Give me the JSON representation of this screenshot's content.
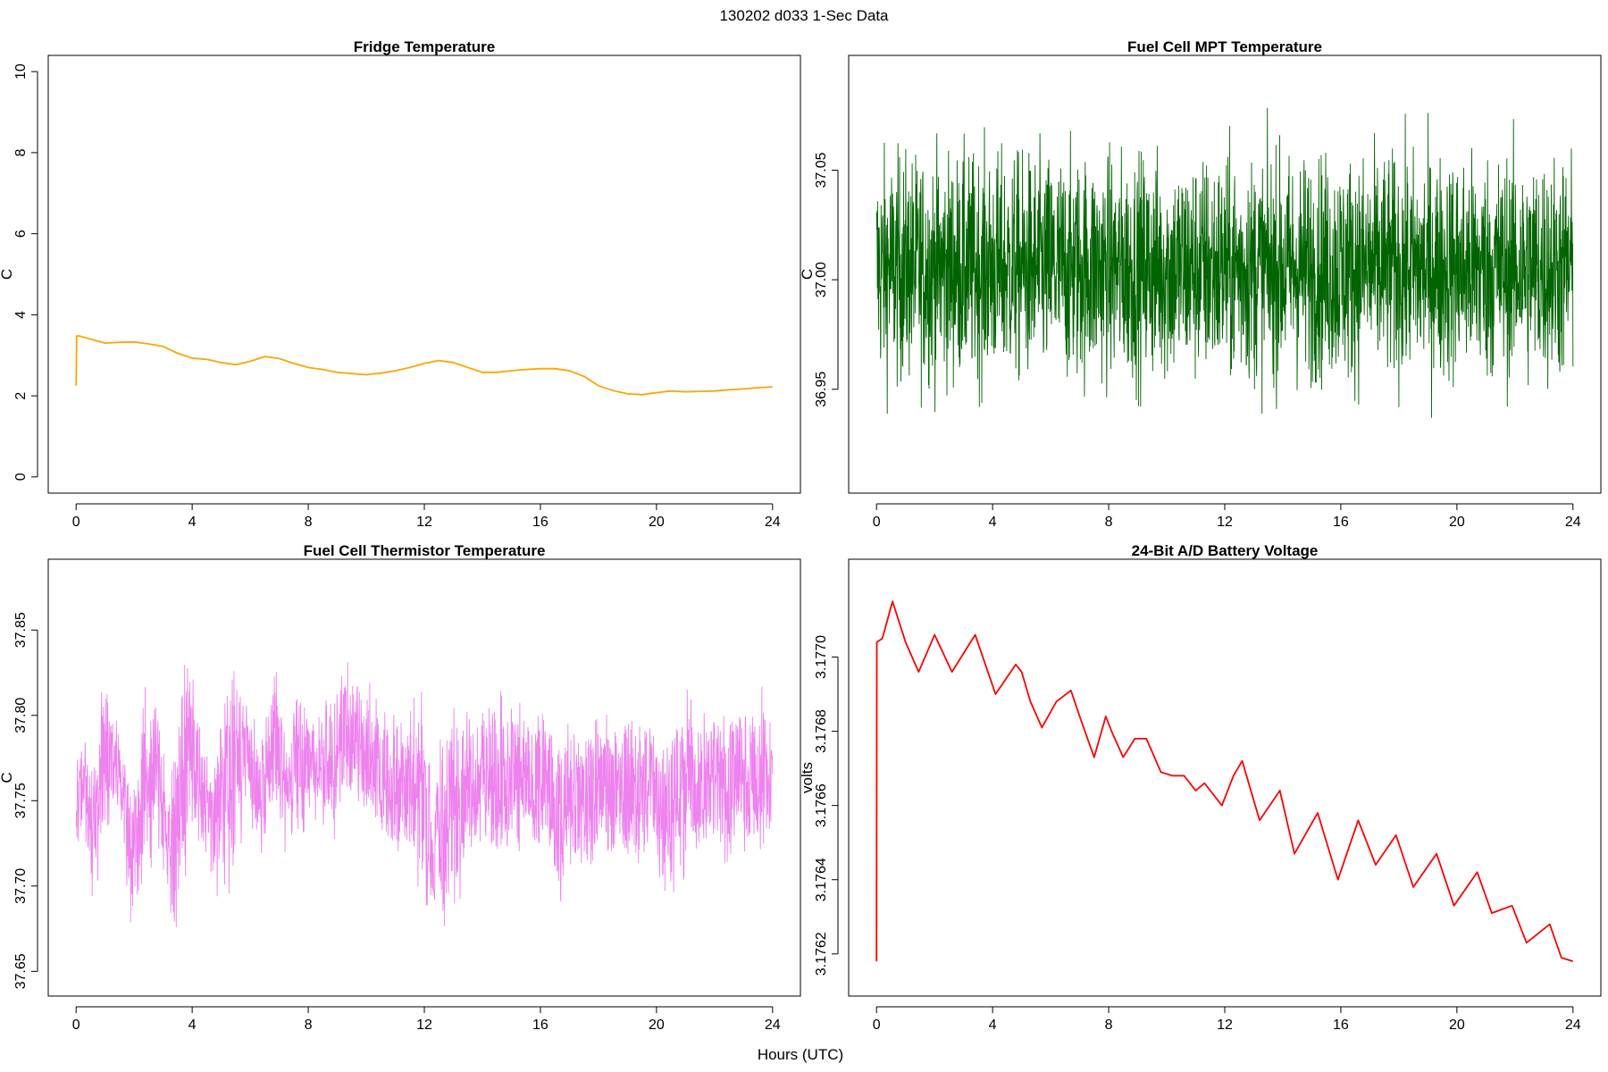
{
  "figure": {
    "title": "130202   d033   1-Sec Data",
    "xlabel": "Hours (UTC)"
  },
  "chart_data": [
    {
      "type": "line",
      "title": "Fridge Temperature",
      "xlabel": "",
      "ylabel": "C",
      "xlim": [
        0,
        24
      ],
      "ylim": [
        0,
        10
      ],
      "xticks": [
        0,
        4,
        8,
        12,
        16,
        20,
        24
      ],
      "yticks": [
        0,
        2,
        4,
        6,
        8,
        10
      ],
      "ytick_labels": [
        "0",
        "2",
        "4",
        "6",
        "8",
        "10"
      ],
      "color": "#FFA500",
      "grid": false,
      "series": [
        {
          "x": [
            0,
            0.02,
            0.1,
            0.5,
            1,
            1.5,
            2,
            2.5,
            3,
            3.5,
            4,
            4.5,
            5,
            5.5,
            6,
            6.5,
            7,
            7.5,
            8,
            8.5,
            9,
            9.5,
            10,
            10.5,
            11,
            11.5,
            12,
            12.5,
            13,
            13.5,
            14,
            14.5,
            15,
            15.5,
            16,
            16.5,
            17,
            17.5,
            18,
            18.5,
            19,
            19.5,
            20,
            20.5,
            21,
            21.5,
            22,
            22.5,
            23,
            23.5,
            24
          ],
          "y": [
            2.25,
            3.48,
            3.48,
            3.4,
            3.3,
            3.32,
            3.33,
            3.28,
            3.22,
            3.05,
            2.93,
            2.9,
            2.82,
            2.77,
            2.85,
            2.97,
            2.92,
            2.8,
            2.7,
            2.65,
            2.58,
            2.55,
            2.52,
            2.56,
            2.62,
            2.7,
            2.8,
            2.87,
            2.82,
            2.7,
            2.58,
            2.58,
            2.62,
            2.65,
            2.67,
            2.67,
            2.62,
            2.48,
            2.25,
            2.13,
            2.05,
            2.03,
            2.08,
            2.12,
            2.1,
            2.11,
            2.12,
            2.15,
            2.17,
            2.2,
            2.22
          ]
        }
      ]
    },
    {
      "type": "line",
      "title": "Fuel Cell MPT Temperature",
      "xlabel": "",
      "ylabel": "C",
      "xlim": [
        0,
        24
      ],
      "ylim": [
        36.91,
        37.095
      ],
      "xticks": [
        0,
        4,
        8,
        12,
        16,
        20,
        24
      ],
      "yticks": [
        36.95,
        37.0,
        37.05
      ],
      "ytick_labels": [
        "36.95",
        "37.00",
        "37.05"
      ],
      "color": "#006400",
      "grid": false,
      "series": [
        {
          "name": "",
          "x_range": [
            0,
            24
          ],
          "mean": 37.005,
          "central_band": [
            36.97,
            37.04
          ],
          "min": 36.915,
          "max": 37.09
        }
      ]
    },
    {
      "type": "line",
      "title": "Fuel Cell Thermistor Temperature",
      "xlabel": "",
      "ylabel": "C",
      "xlim": [
        0,
        24
      ],
      "ylim": [
        37.645,
        37.882
      ],
      "xticks": [
        0,
        4,
        8,
        12,
        16,
        20,
        24
      ],
      "yticks": [
        37.65,
        37.7,
        37.75,
        37.8,
        37.85
      ],
      "ytick_labels": [
        "37.65",
        "37.70",
        "37.75",
        "37.80",
        "37.85"
      ],
      "color": "#EE82EE",
      "grid": false,
      "series": [
        {
          "name": "",
          "x": [
            0,
            0.3,
            0.6,
            1.0,
            1.5,
            1.9,
            2.3,
            2.8,
            3.2,
            3.5,
            3.9,
            4.3,
            4.7,
            5.1,
            5.5,
            5.9,
            6.3,
            6.8,
            7.2,
            7.6,
            8.0,
            8.4,
            8.8,
            9.3,
            9.8,
            10.4,
            11.0,
            11.5,
            11.9,
            12.3,
            12.6,
            13.0,
            13.4,
            13.8,
            14.2,
            14.6,
            15.0,
            15.4,
            15.8,
            16.2,
            16.6,
            17.0,
            17.4,
            17.8,
            18.3,
            18.7,
            19.1,
            19.5,
            19.9,
            20.3,
            20.7,
            21.1,
            21.6,
            22.0,
            22.4,
            22.9,
            23.3,
            23.7,
            24
          ],
          "low": [
            37.72,
            37.74,
            37.7,
            37.74,
            37.75,
            37.68,
            37.71,
            37.74,
            37.68,
            37.69,
            37.74,
            37.73,
            37.7,
            37.72,
            37.72,
            37.76,
            37.72,
            37.76,
            37.73,
            37.74,
            37.74,
            37.75,
            37.73,
            37.76,
            37.75,
            37.74,
            37.73,
            37.72,
            37.71,
            37.67,
            37.68,
            37.71,
            37.72,
            37.73,
            37.73,
            37.72,
            37.71,
            37.73,
            37.73,
            37.73,
            37.69,
            37.72,
            37.72,
            37.71,
            37.73,
            37.72,
            37.72,
            37.72,
            37.73,
            37.7,
            37.71,
            37.72,
            37.73,
            37.73,
            37.72,
            37.74,
            37.72,
            37.73,
            37.74
          ],
          "high": [
            37.77,
            37.78,
            37.76,
            37.82,
            37.79,
            37.75,
            37.8,
            37.8,
            37.75,
            37.79,
            37.83,
            37.78,
            37.77,
            37.8,
            37.82,
            37.8,
            37.78,
            37.82,
            37.78,
            37.81,
            37.8,
            37.81,
            37.8,
            37.83,
            37.82,
            37.8,
            37.79,
            37.8,
            37.8,
            37.76,
            37.78,
            37.8,
            37.8,
            37.79,
            37.8,
            37.8,
            37.8,
            37.79,
            37.79,
            37.8,
            37.77,
            37.79,
            37.78,
            37.79,
            37.8,
            37.78,
            37.79,
            37.79,
            37.79,
            37.78,
            37.79,
            37.8,
            37.79,
            37.8,
            37.8,
            37.8,
            37.8,
            37.8,
            37.8
          ]
        }
      ]
    },
    {
      "type": "line",
      "title": "24-Bit A/D Battery Voltage",
      "xlabel": "",
      "ylabel": "volts",
      "xlim": [
        0,
        24
      ],
      "ylim": [
        3.17613,
        3.17722
      ],
      "xticks": [
        0,
        4,
        8,
        12,
        16,
        20,
        24
      ],
      "yticks": [
        3.1762,
        3.1764,
        3.1766,
        3.1768,
        3.177
      ],
      "ytick_labels": [
        "3.1762",
        "3.1764",
        "3.1766",
        "3.1768",
        "3.1770"
      ],
      "color": "#FF0000",
      "grid": false,
      "series": [
        {
          "x": [
            0,
            0.01,
            0.2,
            0.55,
            1.0,
            1.45,
            2.0,
            2.6,
            3.4,
            4.1,
            4.8,
            5.0,
            5.3,
            5.7,
            6.2,
            6.7,
            7.0,
            7.5,
            7.9,
            8.1,
            8.5,
            8.9,
            9.3,
            9.8,
            10.2,
            10.6,
            11.0,
            11.3,
            11.9,
            12.3,
            12.6,
            13.2,
            13.9,
            14.4,
            15.2,
            15.9,
            16.6,
            17.2,
            17.9,
            18.5,
            19.3,
            19.9,
            20.7,
            21.2,
            21.9,
            22.4,
            23.2,
            23.6,
            24
          ],
          "y": [
            3.17618,
            3.17704,
            3.17705,
            3.17715,
            3.17704,
            3.17696,
            3.17706,
            3.17696,
            3.17706,
            3.1769,
            3.17698,
            3.17696,
            3.17688,
            3.17681,
            3.17688,
            3.17691,
            3.17684,
            3.17673,
            3.17684,
            3.1768,
            3.17673,
            3.17678,
            3.17678,
            3.17669,
            3.17668,
            3.17668,
            3.17664,
            3.17666,
            3.1766,
            3.17668,
            3.17672,
            3.17656,
            3.17664,
            3.17647,
            3.17658,
            3.1764,
            3.17656,
            3.17644,
            3.17652,
            3.17638,
            3.17647,
            3.17633,
            3.17642,
            3.17631,
            3.17633,
            3.17623,
            3.17628,
            3.17619,
            3.17618
          ]
        }
      ]
    }
  ]
}
